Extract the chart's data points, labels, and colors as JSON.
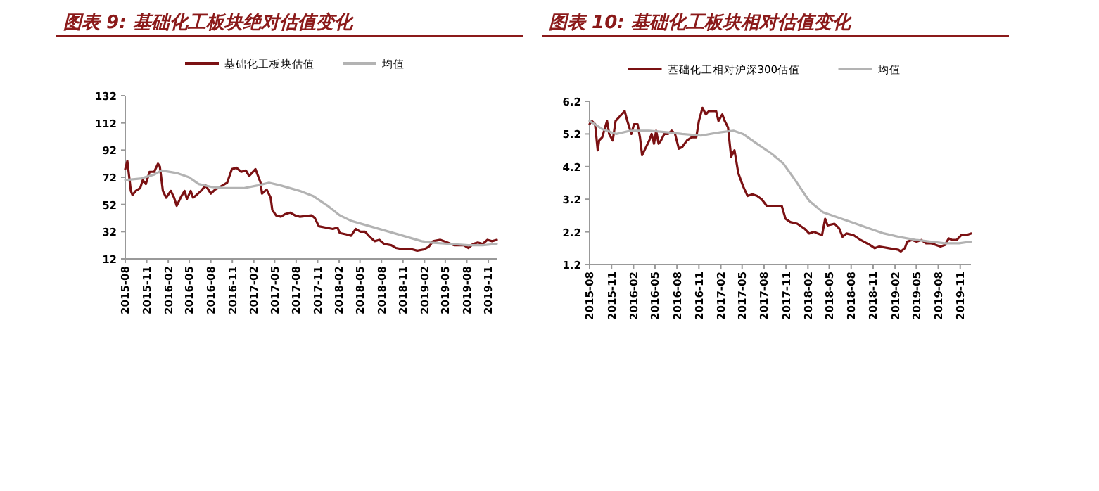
{
  "chart_data": [
    {
      "type": "line",
      "title": "图表 9: 基础化工板块绝对估值变化",
      "legend": "top",
      "xlim": [
        "2015-08-01",
        "2019-12-07"
      ],
      "ylim": [
        12,
        132
      ],
      "yticks": [
        12,
        32,
        52,
        72,
        92,
        112,
        132
      ],
      "xticks": [
        "2015-08",
        "2015-11",
        "2016-02",
        "2016-05",
        "2016-08",
        "2016-11",
        "2017-02",
        "2017-05",
        "2017-08",
        "2017-11",
        "2018-02",
        "2018-05",
        "2018-08",
        "2018-11",
        "2019-02",
        "2019-05",
        "2019-08",
        "2019-11"
      ],
      "series": [
        {
          "name": "基础化工板块估值",
          "color": "#7b1113",
          "x": [
            "2015-08-01",
            "2015-08-10",
            "2015-08-25",
            "2015-09-01",
            "2015-09-15",
            "2015-10-04",
            "2015-10-15",
            "2015-10-28",
            "2015-11-13",
            "2015-12-03",
            "2015-12-19",
            "2015-12-27",
            "2016-01-09",
            "2016-01-23",
            "2016-02-12",
            "2016-02-26",
            "2016-03-08",
            "2016-03-28",
            "2016-04-11",
            "2016-04-21",
            "2016-05-07",
            "2016-05-17",
            "2016-06-01",
            "2016-06-20",
            "2016-07-10",
            "2016-08-01",
            "2016-08-20",
            "2016-09-10",
            "2016-10-10",
            "2016-10-30",
            "2016-11-19",
            "2016-12-09",
            "2016-12-29",
            "2017-01-12",
            "2017-02-08",
            "2017-03-02",
            "2017-03-08",
            "2017-03-28",
            "2017-04-14",
            "2017-04-21",
            "2017-05-07",
            "2017-05-27",
            "2017-06-16",
            "2017-07-07",
            "2017-07-27",
            "2017-08-16",
            "2017-10-06",
            "2017-10-20",
            "2017-11-06",
            "2017-12-05",
            "2018-01-05",
            "2018-01-25",
            "2018-02-04",
            "2018-03-04",
            "2018-03-24",
            "2018-04-13",
            "2018-05-03",
            "2018-05-23",
            "2018-06-13",
            "2018-07-03",
            "2018-07-23",
            "2018-08-12",
            "2018-09-12",
            "2018-10-02",
            "2018-11-01",
            "2018-12-11",
            "2019-01-01",
            "2019-01-31",
            "2019-02-20",
            "2019-03-10",
            "2019-04-10",
            "2019-05-10",
            "2019-06-09",
            "2019-07-19",
            "2019-08-08",
            "2019-08-28",
            "2019-09-17",
            "2019-10-08",
            "2019-10-28",
            "2019-11-17",
            "2019-12-07"
          ],
          "values": [
            78,
            84,
            62,
            59,
            62,
            64,
            70,
            67,
            76,
            76,
            82,
            80,
            62,
            57,
            62,
            57,
            51,
            58,
            62,
            56,
            62,
            57,
            59,
            62,
            66,
            60,
            63,
            65,
            68,
            78,
            79,
            76,
            77,
            73,
            78,
            68,
            60,
            63,
            57,
            48,
            44,
            43,
            45,
            46,
            44,
            43,
            44,
            42,
            36,
            35,
            34,
            35,
            31,
            30,
            29,
            34,
            32,
            32,
            28,
            25,
            26,
            23,
            22,
            20,
            19,
            19,
            18,
            19,
            21,
            25,
            26,
            24,
            22,
            22,
            20,
            23,
            24,
            23,
            26,
            25,
            26
          ]
        },
        {
          "name": "均值",
          "color": "#b3b3b3",
          "x": [
            "2015-08-01",
            "2015-10-04",
            "2015-12-03",
            "2016-01-03",
            "2016-03-11",
            "2016-04-30",
            "2016-06-10",
            "2016-08-01",
            "2016-09-29",
            "2016-12-19",
            "2017-02-17",
            "2017-04-07",
            "2017-05-27",
            "2017-08-16",
            "2017-10-15",
            "2017-12-14",
            "2018-02-04",
            "2018-03-24",
            "2018-05-23",
            "2018-08-12",
            "2018-11-01",
            "2019-01-20",
            "2019-02-28",
            "2019-05-20",
            "2019-08-08",
            "2019-10-08",
            "2019-12-07"
          ],
          "values": [
            70,
            71,
            74,
            77,
            75,
            72,
            67,
            65,
            64,
            64,
            66,
            68,
            66,
            62,
            58,
            51,
            44,
            40,
            37,
            33,
            29,
            25,
            24,
            23,
            22,
            22,
            23
          ]
        }
      ]
    },
    {
      "type": "line",
      "title": "图表 10: 基础化工板块相对估值变化",
      "legend": "top",
      "xlim": [
        "2015-08-01",
        "2019-12-16"
      ],
      "ylim": [
        1.2,
        6.2
      ],
      "yticks": [
        1.2,
        2.2,
        3.2,
        4.2,
        5.2,
        6.2
      ],
      "xticks": [
        "2015-08",
        "2015-11",
        "2016-02",
        "2016-05",
        "2016-08",
        "2016-11",
        "2017-02",
        "2017-05",
        "2017-08",
        "2017-11",
        "2018-02",
        "2018-05",
        "2018-08",
        "2018-11",
        "2019-02",
        "2019-05",
        "2019-08",
        "2019-11"
      ],
      "series": [
        {
          "name": "基础化工相对沪深300估值",
          "color": "#7b1113",
          "x": [
            "2015-08-01",
            "2015-08-10",
            "2015-08-24",
            "2015-09-04",
            "2015-09-10",
            "2015-09-23",
            "2015-10-13",
            "2015-10-22",
            "2015-11-06",
            "2015-11-18",
            "2015-12-01",
            "2015-12-26",
            "2016-01-06",
            "2016-01-23",
            "2016-02-03",
            "2016-02-18",
            "2016-02-28",
            "2016-03-08",
            "2016-03-18",
            "2016-04-07",
            "2016-04-17",
            "2016-04-27",
            "2016-05-06",
            "2016-05-16",
            "2016-05-26",
            "2016-06-09",
            "2016-06-25",
            "2016-07-10",
            "2016-07-24",
            "2016-08-09",
            "2016-08-23",
            "2016-09-12",
            "2016-10-02",
            "2016-10-21",
            "2016-11-01",
            "2016-11-16",
            "2016-11-30",
            "2016-12-13",
            "2016-12-29",
            "2017-01-12",
            "2017-01-22",
            "2017-02-07",
            "2017-02-17",
            "2017-03-03",
            "2017-03-16",
            "2017-03-30",
            "2017-04-15",
            "2017-05-05",
            "2017-05-24",
            "2017-06-13",
            "2017-07-03",
            "2017-07-22",
            "2017-08-12",
            "2017-09-01",
            "2017-09-21",
            "2017-10-14",
            "2017-10-30",
            "2017-11-19",
            "2017-12-18",
            "2018-01-17",
            "2018-02-06",
            "2018-02-26",
            "2018-03-15",
            "2018-04-01",
            "2018-04-14",
            "2018-04-24",
            "2018-05-23",
            "2018-06-12",
            "2018-06-26",
            "2018-07-12",
            "2018-08-11",
            "2018-09-10",
            "2018-10-18",
            "2018-11-08",
            "2018-11-27",
            "2019-01-06",
            "2019-02-15",
            "2019-02-25",
            "2019-03-14",
            "2019-03-24",
            "2019-04-13",
            "2019-05-02",
            "2019-05-22",
            "2019-06-11",
            "2019-07-01",
            "2019-08-10",
            "2019-08-29",
            "2019-09-14",
            "2019-09-28",
            "2019-10-17",
            "2019-11-06",
            "2019-11-26",
            "2019-12-16"
          ],
          "values": [
            5.5,
            5.6,
            5.5,
            4.7,
            5.0,
            5.1,
            5.6,
            5.2,
            5.0,
            5.6,
            5.7,
            5.9,
            5.6,
            5.2,
            5.5,
            5.5,
            5.1,
            4.55,
            4.7,
            5.0,
            5.2,
            4.9,
            5.3,
            4.9,
            5.0,
            5.2,
            5.2,
            5.3,
            5.2,
            4.75,
            4.8,
            5.0,
            5.1,
            5.1,
            5.6,
            6.0,
            5.8,
            5.9,
            5.9,
            5.9,
            5.6,
            5.8,
            5.6,
            5.4,
            4.5,
            4.7,
            4.0,
            3.6,
            3.3,
            3.35,
            3.3,
            3.2,
            3.0,
            3.0,
            3.0,
            3.0,
            2.6,
            2.5,
            2.45,
            2.3,
            2.15,
            2.2,
            2.15,
            2.1,
            2.6,
            2.4,
            2.45,
            2.3,
            2.05,
            2.15,
            2.1,
            1.95,
            1.8,
            1.7,
            1.75,
            1.7,
            1.65,
            1.6,
            1.7,
            1.9,
            1.95,
            1.9,
            1.95,
            1.85,
            1.85,
            1.75,
            1.8,
            2.0,
            1.95,
            1.95,
            2.1,
            2.1,
            2.15
          ]
        },
        {
          "name": "均值",
          "color": "#b3b3b3",
          "x": [
            "2015-08-01",
            "2015-09-23",
            "2015-11-21",
            "2016-01-19",
            "2016-04-07",
            "2016-06-25",
            "2016-08-23",
            "2016-11-10",
            "2017-01-28",
            "2017-03-26",
            "2017-05-05",
            "2017-07-03",
            "2017-09-01",
            "2017-10-20",
            "2017-12-08",
            "2018-02-06",
            "2018-04-05",
            "2018-06-03",
            "2018-08-21",
            "2018-10-18",
            "2018-12-17",
            "2019-02-15",
            "2019-05-02",
            "2019-07-01",
            "2019-08-29",
            "2019-10-27",
            "2019-12-16"
          ],
          "values": [
            5.6,
            5.35,
            5.2,
            5.3,
            5.3,
            5.25,
            5.2,
            5.15,
            5.25,
            5.3,
            5.2,
            4.9,
            4.6,
            4.3,
            3.8,
            3.15,
            2.8,
            2.65,
            2.45,
            2.3,
            2.15,
            2.05,
            1.95,
            1.9,
            1.85,
            1.85,
            1.9
          ]
        }
      ]
    }
  ]
}
